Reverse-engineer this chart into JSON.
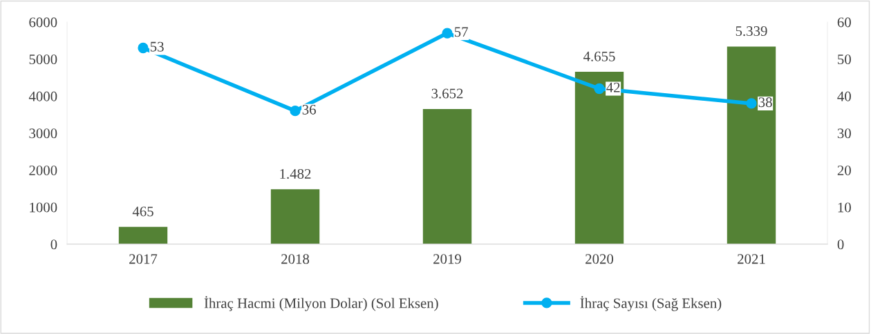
{
  "chart_data": {
    "type": "bar",
    "categories": [
      "2017",
      "2018",
      "2019",
      "2020",
      "2021"
    ],
    "series": [
      {
        "name": "İhraç Hacmi (Milyon Dolar) (Sol Eksen)",
        "color": "#548235",
        "values": [
          465,
          1482,
          3652,
          4655,
          5339
        ],
        "value_labels": [
          "465",
          "1.482",
          "3.652",
          "4.655",
          "5.339"
        ]
      },
      {
        "name": "İhraç Sayısı (Sağ Eksen)",
        "type": "line",
        "axis": "y2",
        "color": "#00b0f0",
        "marker": "circle",
        "values": [
          53,
          36,
          57,
          42,
          38
        ],
        "value_labels": [
          "53",
          "36",
          "57",
          "42",
          "38"
        ]
      }
    ],
    "ylim": [
      0,
      6000
    ],
    "yticks": [
      0,
      1000,
      2000,
      3000,
      4000,
      5000,
      6000
    ],
    "y2lim": [
      0,
      60
    ],
    "y2ticks": [
      0,
      10,
      20,
      30,
      40,
      50,
      60
    ],
    "grid": false,
    "legend": "bottom"
  }
}
